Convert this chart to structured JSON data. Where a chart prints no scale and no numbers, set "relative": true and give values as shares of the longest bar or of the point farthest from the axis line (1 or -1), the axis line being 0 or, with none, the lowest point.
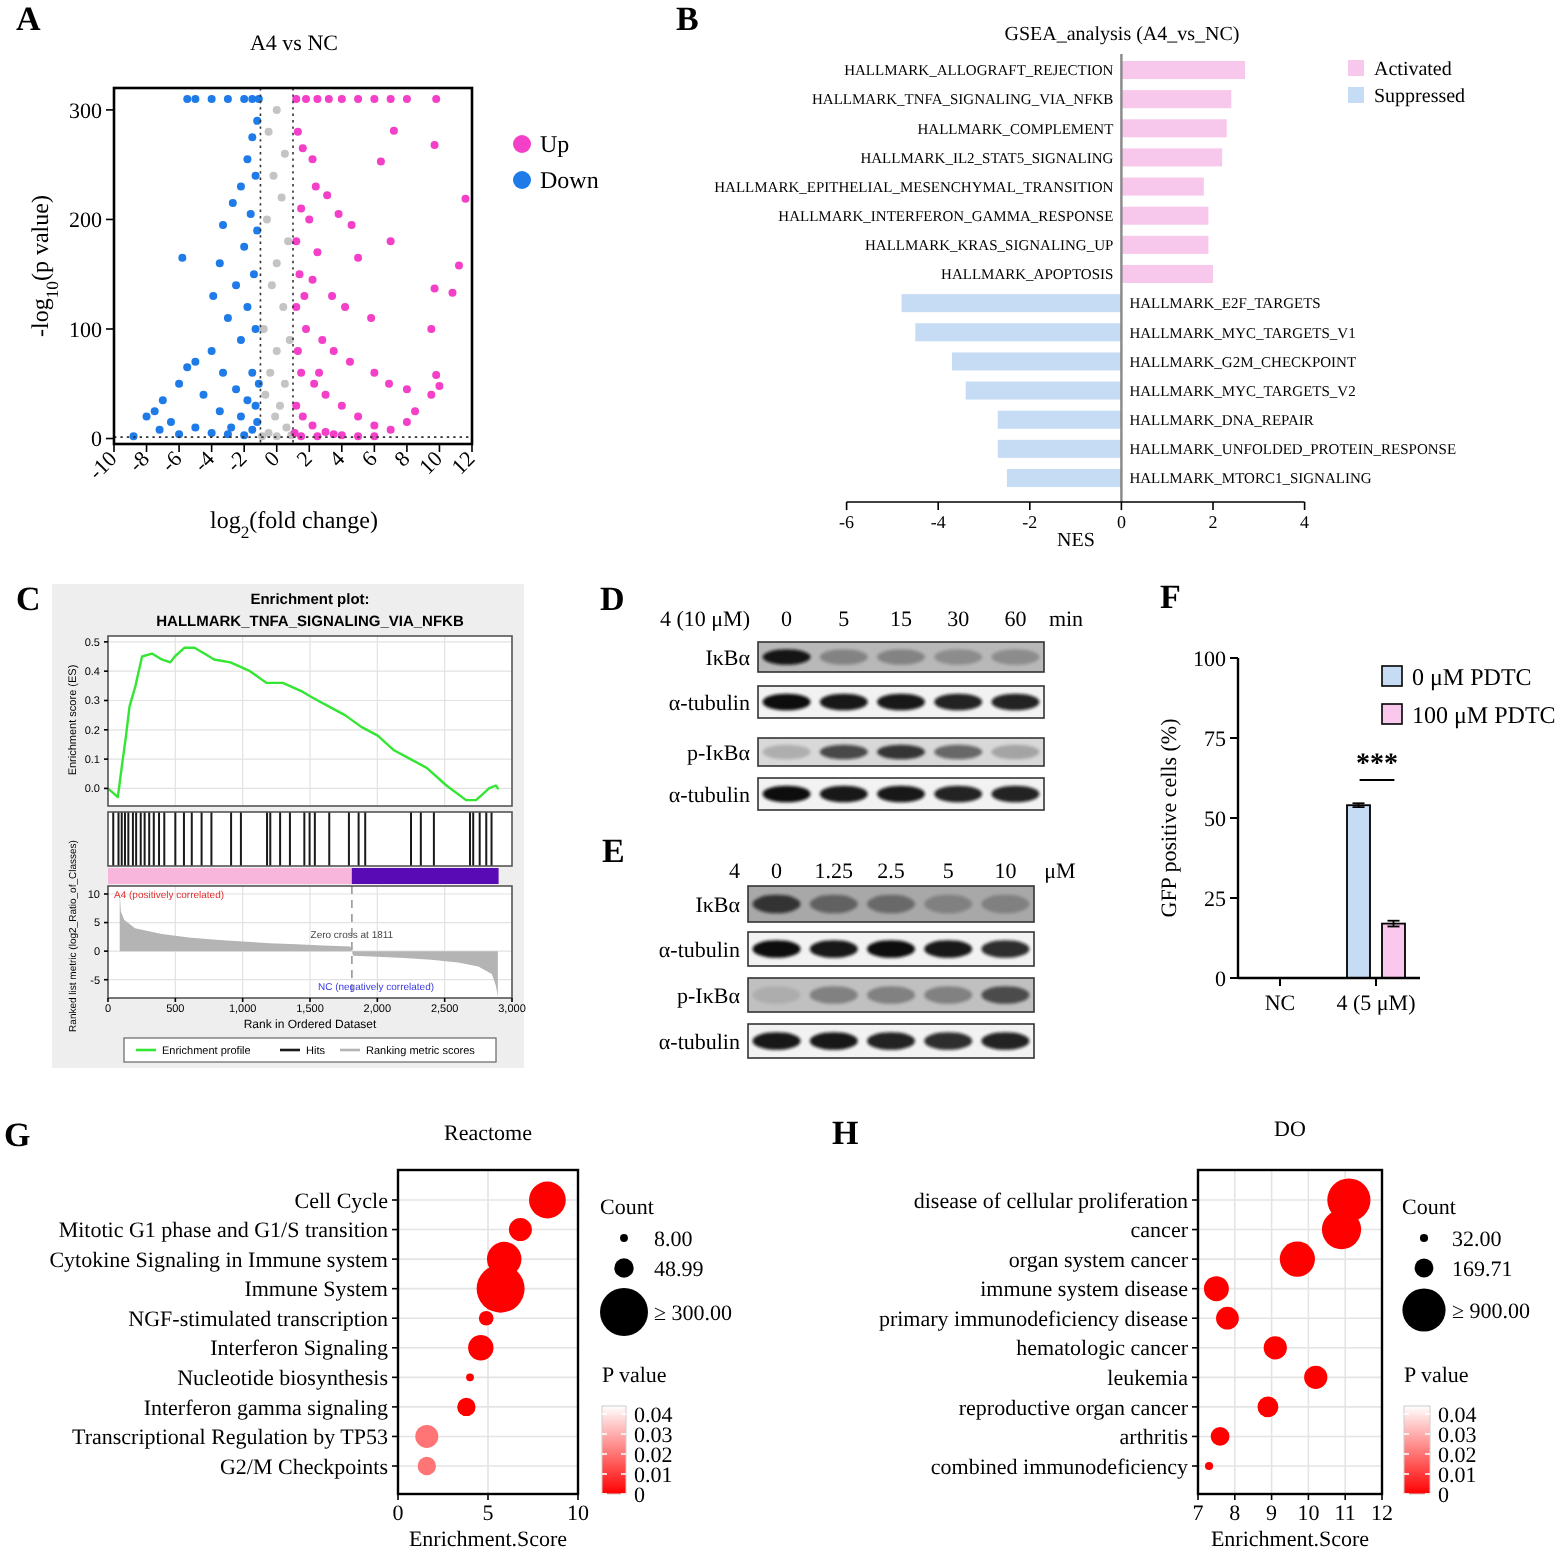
{
  "chart_data": [
    {
      "type": "scatter",
      "title": "A4 vs NC",
      "xlabel": "log$_{2}$(fold change)",
      "ylabel": "-log$_{10}$(p value)",
      "annotations": [
        "A"
      ],
      "xlim": [
        -10,
        12
      ],
      "ylim": [
        -5,
        320
      ],
      "xticks": [
        -10,
        -8,
        -6,
        -4,
        -2,
        0,
        2,
        4,
        6,
        8,
        10,
        12
      ],
      "yticks": [
        0,
        100,
        200,
        300
      ],
      "marker": "circle",
      "legend": "right",
      "ref_lines": [
        {
          "axis": "x",
          "value": -1,
          "line_style": "dotted",
          "color": "#333333"
        },
        {
          "axis": "x",
          "value": 1,
          "line_style": "dotted",
          "color": "#333333"
        },
        {
          "axis": "y",
          "value": 1.3,
          "line_style": "dotted",
          "color": "#333333"
        }
      ],
      "series": [
        {
          "color": "#c4c4c4",
          "x": [
            0,
            -0.5,
            0.5,
            -0.2,
            0.3,
            -0.6,
            0.7,
            0,
            -0.3,
            0.4,
            -0.8,
            0.8,
            0,
            -0.4,
            0.5,
            -0.7,
            0.2,
            -0.1,
            0.6,
            -0.5,
            0,
            0.9,
            -0.9
          ],
          "values": [
            300,
            280,
            260,
            240,
            220,
            200,
            180,
            160,
            140,
            120,
            100,
            90,
            80,
            60,
            50,
            40,
            30,
            20,
            10,
            5,
            2,
            3,
            2
          ]
        },
        {
          "name": "Up",
          "color": "#f43fc8",
          "x": [
            1.2,
            1.8,
            2.5,
            3.2,
            4,
            5,
            6,
            7,
            8,
            9.8,
            1.3,
            1.6,
            2.2,
            2.4,
            3.1,
            7.2,
            9.7,
            6.4,
            11.6,
            1.5,
            2,
            3.8,
            4.6,
            1.2,
            7,
            2.5,
            5,
            11.2,
            9.7,
            10.8,
            1.4,
            2.2,
            3.4,
            4.2,
            5.8,
            9.5,
            1.2,
            1.8,
            2.8,
            3.5,
            4.5,
            6,
            6.9,
            8,
            9.8,
            1.5,
            2.3,
            3,
            4,
            5,
            6,
            7,
            8.5,
            9.5,
            10,
            1.2,
            1.6,
            2.2,
            3,
            4,
            5,
            6,
            8,
            1.1,
            1.5,
            2.5,
            3.5,
            1.3,
            1.7,
            2.6
          ],
          "values": [
            310,
            310,
            310,
            310,
            310,
            310,
            310,
            310,
            310,
            310,
            280,
            265,
            255,
            230,
            222,
            281,
            268,
            253,
            219,
            210,
            200,
            205,
            195,
            180,
            180,
            170,
            165,
            158,
            137,
            133,
            150,
            145,
            130,
            120,
            110,
            100,
            120,
            100,
            90,
            80,
            70,
            60,
            50,
            45,
            58,
            60,
            50,
            40,
            30,
            20,
            12,
            8,
            25,
            40,
            48,
            30,
            20,
            12,
            6,
            3,
            2,
            2,
            15,
            5,
            2,
            2,
            4,
            80,
            130,
            60
          ]
        },
        {
          "name": "Down",
          "color": "#1e7be8",
          "x": [
            -5.5,
            -5,
            -4,
            -3,
            -2,
            -1.5,
            -1.1,
            -1.2,
            -1.5,
            -1.8,
            -1.3,
            -2.2,
            -2.7,
            -1.6,
            -3.3,
            -1.2,
            -2,
            -5.8,
            -3.5,
            -1.4,
            -2.5,
            -3.9,
            -1.8,
            -3,
            -1.3,
            -2.2,
            -4,
            -5,
            -5.5,
            -3.3,
            -1.5,
            -6,
            -2.5,
            -4.5,
            -7,
            -1.8,
            -3.5,
            -7.5,
            -8,
            -6.5,
            -2.2,
            -5,
            -1.2,
            -4,
            -3,
            -2,
            -6,
            -8.8,
            -7.2,
            -1.5,
            -2.8,
            -1.1,
            -1.3
          ],
          "values": [
            310,
            310,
            310,
            310,
            310,
            310,
            310,
            290,
            275,
            255,
            240,
            230,
            215,
            205,
            195,
            190,
            175,
            165,
            160,
            150,
            140,
            130,
            120,
            110,
            100,
            90,
            80,
            70,
            65,
            60,
            60,
            50,
            45,
            40,
            35,
            35,
            25,
            25,
            20,
            15,
            20,
            10,
            15,
            5,
            4,
            3,
            4,
            2,
            8,
            8,
            10,
            50,
            30
          ]
        }
      ]
    },
    {
      "type": "bar",
      "orientation": "horizontal",
      "stacked": true,
      "title": "GSEA_analysis (A4_vs_NC)",
      "xlabel": "NES",
      "annotations": [
        "B"
      ],
      "categories": [
        "HALLMARK_ALLOGRAFT_REJECTION",
        "HALLMARK_TNFA_SIGNALING_VIA_NFKB",
        "HALLMARK_COMPLEMENT",
        "HALLMARK_IL2_STAT5_SIGNALING",
        "HALLMARK_EPITHELIAL_MESENCHYMAL_TRANSITION",
        "HALLMARK_INTERFERON_GAMMA_RESPONSE",
        "HALLMARK_KRAS_SIGNALING_UP",
        "HALLMARK_APOPTOSIS",
        "HALLMARK_E2F_TARGETS",
        "HALLMARK_MYC_TARGETS_V1",
        "HALLMARK_G2M_CHECKPOINT",
        "HALLMARK_MYC_TARGETS_V2",
        "HALLMARK_DNA_REPAIR",
        "HALLMARK_UNFOLDED_PROTEIN_RESPONSE",
        "HALLMARK_MTORC1_SIGNALING"
      ],
      "xlim": [
        -6,
        4
      ],
      "xticks": [
        -6,
        -4,
        -2,
        0,
        2,
        4
      ],
      "legend": "top right",
      "series": [
        {
          "name": "Activated",
          "color": "#f8c8ec",
          "values": [
            2.7,
            2.4,
            2.3,
            2.2,
            1.8,
            1.9,
            1.9,
            2.0,
            null,
            null,
            null,
            null,
            null,
            null,
            null
          ]
        },
        {
          "name": "Suppressed",
          "color": "#c6dcf5",
          "values": [
            null,
            null,
            null,
            null,
            null,
            null,
            null,
            null,
            -4.8,
            -4.5,
            -3.7,
            -3.4,
            -2.7,
            -2.7,
            -2.5
          ]
        }
      ]
    },
    {
      "type": "line",
      "title": "Enrichment plot:",
      "subtitle": "HALLMARK_TNFA_SIGNALING_VIA_NFKB",
      "ylabel": "Enrichment score (ES)",
      "annotations": [
        "C"
      ],
      "xlim": [
        0,
        3000
      ],
      "ylim": [
        -0.06,
        0.52
      ],
      "xticks": [
        0,
        500,
        1000,
        1500,
        2000,
        2500,
        3000
      ],
      "yticks": [
        {
          "value": 0,
          "label": "0.0"
        },
        0.1,
        0.2,
        0.3,
        0.4,
        0.5
      ],
      "tick_labels": "y",
      "grid": true,
      "legend": "bottom",
      "marker": "none",
      "series": [
        {
          "name": "Enrichment profile",
          "color": "#33e633",
          "x": [
            0,
            73,
            107,
            131,
            160,
            204,
            253,
            326,
            399,
            462,
            496,
            569,
            642,
            715,
            788,
            909,
            1055,
            1176,
            1298,
            1444,
            1517,
            1638,
            1760,
            1881,
            2003,
            2124,
            2246,
            2367,
            2513,
            2659,
            2732,
            2781,
            2829,
            2880,
            2895
          ],
          "values": [
            0,
            -0.03,
            0.09,
            0.17,
            0.28,
            0.35,
            0.45,
            0.46,
            0.44,
            0.43,
            0.45,
            0.48,
            0.48,
            0.46,
            0.44,
            0.43,
            0.4,
            0.36,
            0.36,
            0.33,
            0.31,
            0.28,
            0.25,
            0.21,
            0.18,
            0.13,
            0.1,
            0.07,
            0.01,
            -0.04,
            -0.04,
            -0.02,
            0.0,
            0.01,
            0.0
          ]
        }
      ]
    },
    {
      "type": "bar",
      "relative": true,
      "tick_labels": false,
      "xlim": [
        0,
        3000
      ],
      "legend": "bottom",
      "series": [
        {
          "name": "Hits",
          "color": "#1a1a1a",
          "x": [
            39,
            78,
            102,
            126,
            151,
            185,
            209,
            243,
            272,
            306,
            340,
            379,
            418,
            500,
            564,
            622,
            695,
            768,
            914,
            987,
            1181,
            1205,
            1278,
            1351,
            1458,
            1497,
            1536,
            1643,
            1789,
            1861,
            1910,
            2250,
            2323,
            2420,
            2688,
            2712,
            2760,
            2809,
            2848
          ],
          "values": [
            1,
            1,
            1,
            1,
            1,
            1,
            1,
            1,
            1,
            1,
            1,
            1,
            1,
            1,
            1,
            1,
            1,
            1,
            1,
            1,
            1,
            1,
            1,
            1,
            1,
            1,
            1,
            1,
            1,
            1,
            1,
            1,
            1,
            1,
            1,
            1,
            1,
            1,
            1
          ]
        }
      ]
    },
    {
      "type": "area",
      "xlabel": "Rank in Ordered Dataset",
      "ylabel": "Ranked list metric (log2_Ratio_of_Classes)",
      "annotations": [
        "A4 (positively correlated)",
        "NC (negatively correlated)"
      ],
      "xlim": [
        0,
        3000
      ],
      "ylim": [
        -8.2,
        11.4
      ],
      "xticks": [
        0,
        500,
        {
          "value": 1000,
          "label": "1,000"
        },
        {
          "value": 1500,
          "label": "1,500"
        },
        {
          "value": 2000,
          "label": "2,000"
        },
        {
          "value": 2500,
          "label": "2,500"
        },
        {
          "value": 3000,
          "label": "3,000"
        }
      ],
      "yticks": [
        -5,
        0,
        5,
        10
      ],
      "grid": true,
      "legend": "bottom",
      "ref_lines": [
        {
          "axis": "x",
          "value": 1811,
          "label": "Zero cross at 1811",
          "line_style": "dashed",
          "color": "#999999"
        }
      ],
      "series": [
        {
          "name": "Ranking metric scores",
          "color": "#b4b4b4",
          "x": [
            87,
            95,
            120,
            200,
            400,
            600,
            800,
            1000,
            1200,
            1400,
            1600,
            1800,
            1811,
            1820,
            2000,
            2200,
            2400,
            2600,
            2750,
            2850,
            2880,
            2895
          ],
          "values": [
            10.2,
            7,
            5.5,
            4,
            3,
            2.4,
            2,
            1.7,
            1.4,
            1.2,
            1,
            0.8,
            0,
            -0.8,
            -1,
            -1.2,
            -1.5,
            -2,
            -2.7,
            -4,
            -6,
            -8
          ]
        }
      ]
    },
    {
      "type": "other",
      "annotations": [
        "D",
        "4 (10 μM)"
      ],
      "categories": [
        "0",
        "5",
        "15",
        "30",
        "60"
      ],
      "y_categories": [
        "IκBα",
        "α-tubulin",
        "p-IκBα",
        "α-tubulin"
      ],
      "xlabel": "min"
    },
    {
      "type": "other",
      "annotations": [
        "E",
        "4"
      ],
      "categories": [
        "0",
        "1.25",
        "2.5",
        "5",
        "10"
      ],
      "y_categories": [
        "IκBα",
        "α-tubulin",
        "p-IκBα",
        "α-tubulin"
      ],
      "xlabel": "μM"
    },
    {
      "type": "bar",
      "ylabel": "GFP positive cells (%)",
      "annotations": [
        "F",
        "***"
      ],
      "categories": [
        "NC",
        "4 (5 μM)"
      ],
      "ylim": [
        0,
        100
      ],
      "yticks": [
        0,
        25,
        50,
        75,
        100
      ],
      "legend": "top right",
      "series": [
        {
          "name": "0 μM PDTC",
          "color": "#c6dcf5",
          "values": [
            0,
            54
          ],
          "errors": [
            null,
            0.6
          ]
        },
        {
          "name": "100 μM PDTC",
          "color": "#f9c8ec",
          "values": [
            0,
            17
          ],
          "errors": [
            null,
            0.9
          ]
        }
      ]
    },
    {
      "type": "bubble",
      "orientation": "horizontal",
      "title": "Reactome",
      "xlabel": "Enrichment.Score",
      "legend_title": "Count",
      "clabel": "P value",
      "annotations": [
        "G"
      ],
      "categories": [
        "Cell Cycle",
        "Mitotic G1 phase and G1/S transition",
        "Cytokine Signaling in Immune system",
        "Immune System",
        "NGF-stimulated transcription",
        "Interferon Signaling",
        "Nucleotide biosynthesis",
        "Interferon gamma signaling",
        "Transcriptional Regulation by TP53",
        "G2/M Checkpoints"
      ],
      "values": [
        8.3,
        6.8,
        5.9,
        5.7,
        4.9,
        4.6,
        4.0,
        3.8,
        1.6,
        1.6
      ],
      "sizes": [
        176,
        69,
        155,
        300,
        28,
        84,
        8,
        44,
        69,
        44
      ],
      "size_legend": [
        {
          "value": 8,
          "label": "8.00"
        },
        {
          "value": 48.99,
          "label": "48.99"
        },
        {
          "value": 300,
          "label": "≥ 300.00"
        }
      ],
      "cvalues": [
        0,
        0,
        0,
        0,
        0,
        0,
        0,
        0,
        0.02,
        0.02
      ],
      "clim": [
        0,
        0.044
      ],
      "cticks": [
        0,
        0.01,
        0.02,
        0.03,
        0.04
      ],
      "xlim": [
        0,
        10
      ],
      "xticks": [
        0,
        5,
        10
      ],
      "grid": true
    },
    {
      "type": "bubble",
      "orientation": "horizontal",
      "title": "DO",
      "xlabel": "Enrichment.Score",
      "legend_title": "Count",
      "clabel": "P value",
      "annotations": [
        "H"
      ],
      "categories": [
        "disease of cellular proliferation",
        "cancer",
        "organ system cancer",
        "immune system disease",
        "primary immunodeficiency disease",
        "hematologic cancer",
        "leukemia",
        "reproductive organ cancer",
        "arthritis",
        "combined immunodeficiency"
      ],
      "values": [
        11.1,
        10.9,
        9.7,
        7.5,
        7.8,
        9.1,
        10.2,
        8.9,
        7.6,
        7.3
      ],
      "sizes": [
        900,
        741,
        598,
        300,
        250,
        260,
        260,
        210,
        170,
        32
      ],
      "size_legend": [
        {
          "value": 32,
          "label": "32.00"
        },
        {
          "value": 169.71,
          "label": "169.71"
        },
        {
          "value": 900,
          "label": "≥ 900.00"
        }
      ],
      "cvalues": [
        0,
        0,
        0,
        0,
        0,
        0,
        0,
        0,
        0,
        0
      ],
      "clim": [
        0,
        0.044
      ],
      "cticks": [
        0,
        0.01,
        0.02,
        0.03,
        0.04
      ],
      "xlim": [
        7,
        12
      ],
      "xticks": [
        7,
        8,
        9,
        10,
        11,
        12
      ],
      "grid": true
    }
  ]
}
